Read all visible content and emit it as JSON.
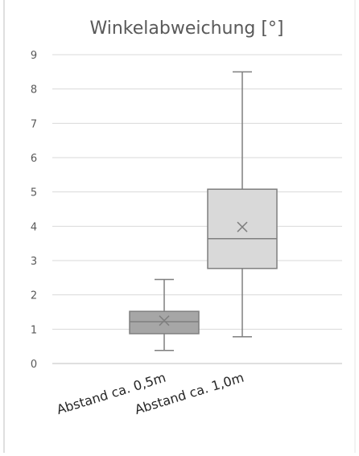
{
  "chart_data": {
    "type": "box",
    "title": "Winkelabweichung [°]",
    "xlabel": "",
    "ylabel": "",
    "ylim": [
      0,
      9
    ],
    "y_ticks": [
      "0",
      "1",
      "2",
      "3",
      "4",
      "5",
      "6",
      "7",
      "8",
      "9"
    ],
    "grid": true,
    "categories": [
      "Abstand ca. 0,5m",
      "Abstand ca. 1,0m"
    ],
    "series": [
      {
        "min": 0.38,
        "q1": 0.87,
        "median": 1.22,
        "q3": 1.52,
        "max": 2.45,
        "mean": 1.25,
        "fill": "#a6a6a6"
      },
      {
        "min": 0.78,
        "q1": 2.77,
        "median": 3.64,
        "q3": 5.08,
        "max": 8.5,
        "mean": 3.98,
        "fill": "#d9d9d9"
      }
    ],
    "colors": {
      "stroke": "#7f7f7f",
      "grid": "#d9d9d9",
      "title": "#595959",
      "tick": "#595959",
      "axis": "#bfbfbf"
    }
  }
}
